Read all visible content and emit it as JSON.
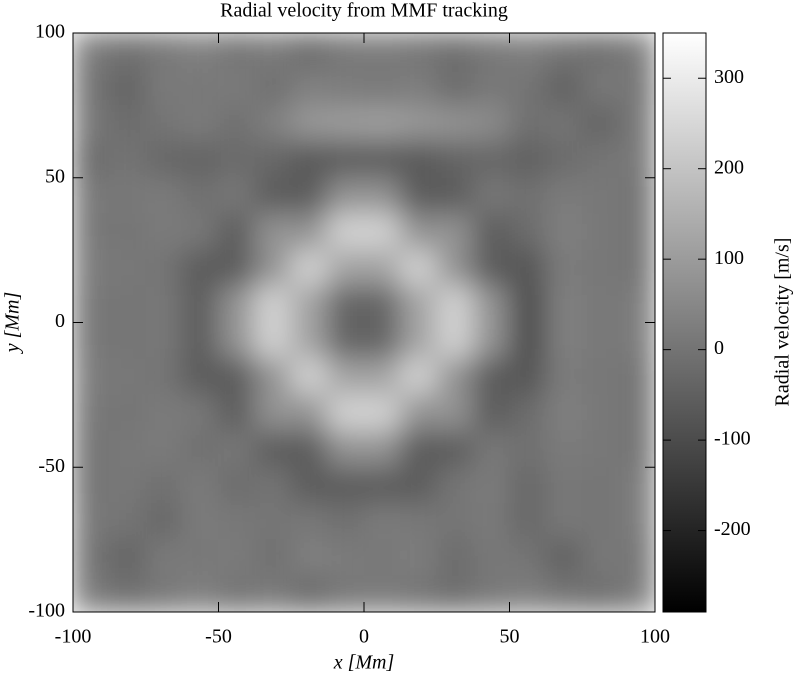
{
  "chart_data": {
    "type": "heatmap",
    "title": "Radial velocity from MMF tracking",
    "x_label": "x [Mm]",
    "y_label": "y [Mm]",
    "colorbar_label": "Radial velocity [m/s]",
    "colormap": "gray",
    "xlim": [
      -100,
      100
    ],
    "ylim": [
      -100,
      100
    ],
    "xticks": [
      -100,
      -50,
      0,
      50,
      100
    ],
    "yticks": [
      -100,
      -50,
      0,
      50,
      100
    ],
    "clim": [
      -290,
      350
    ],
    "cticks": [
      -200,
      -100,
      0,
      100,
      200,
      300
    ],
    "x": [
      -93.75,
      -81.25,
      -68.75,
      -56.25,
      -43.75,
      -31.25,
      -18.75,
      -6.25,
      6.25,
      18.75,
      31.25,
      43.75,
      56.25,
      68.75,
      81.25,
      93.75
    ],
    "y": [
      93.75,
      81.25,
      68.75,
      56.25,
      43.75,
      31.25,
      18.75,
      6.25,
      -6.25,
      -18.75,
      -31.25,
      -43.75,
      -56.25,
      -68.75,
      -81.25,
      -93.75
    ],
    "values": [
      [
        20,
        -10,
        10,
        30,
        0,
        15,
        -20,
        10,
        20,
        5,
        -15,
        10,
        25,
        0,
        -10,
        15
      ],
      [
        0,
        -40,
        15,
        10,
        20,
        -10,
        30,
        20,
        10,
        25,
        -20,
        10,
        0,
        -50,
        10,
        5
      ],
      [
        10,
        -20,
        0,
        20,
        -10,
        30,
        90,
        100,
        110,
        90,
        80,
        60,
        -10,
        0,
        -40,
        10
      ],
      [
        -20,
        0,
        -30,
        -40,
        -20,
        -30,
        -70,
        -60,
        -60,
        -70,
        -40,
        -30,
        -50,
        -20,
        0,
        10
      ],
      [
        10,
        10,
        20,
        -10,
        10,
        -60,
        -60,
        80,
        80,
        -60,
        -60,
        10,
        -10,
        20,
        10,
        0
      ],
      [
        10,
        0,
        20,
        10,
        -60,
        80,
        80,
        240,
        240,
        80,
        80,
        -60,
        -20,
        30,
        10,
        0
      ],
      [
        20,
        10,
        0,
        -60,
        -60,
        80,
        240,
        120,
        120,
        240,
        80,
        -60,
        -80,
        20,
        10,
        0
      ],
      [
        10,
        0,
        10,
        -60,
        80,
        240,
        120,
        -40,
        -40,
        120,
        240,
        80,
        -100,
        30,
        10,
        20
      ],
      [
        10,
        0,
        10,
        -60,
        80,
        240,
        120,
        -40,
        -40,
        120,
        240,
        80,
        -100,
        30,
        10,
        20
      ],
      [
        20,
        10,
        0,
        -60,
        -60,
        80,
        240,
        120,
        120,
        240,
        80,
        -60,
        -80,
        20,
        10,
        0
      ],
      [
        10,
        0,
        20,
        10,
        -60,
        80,
        80,
        240,
        240,
        80,
        80,
        -60,
        -20,
        30,
        10,
        0
      ],
      [
        0,
        10,
        20,
        -10,
        10,
        -60,
        -60,
        80,
        80,
        -60,
        -60,
        10,
        -10,
        20,
        10,
        0
      ],
      [
        0,
        10,
        -10,
        20,
        -20,
        0,
        -60,
        -60,
        -60,
        -60,
        0,
        20,
        -30,
        10,
        0,
        20
      ],
      [
        10,
        0,
        -30,
        20,
        10,
        0,
        10,
        -10,
        20,
        10,
        0,
        15,
        -30,
        10,
        0,
        20
      ],
      [
        0,
        -40,
        15,
        10,
        20,
        -10,
        30,
        20,
        10,
        25,
        -20,
        10,
        0,
        -50,
        10,
        5
      ],
      [
        20,
        -10,
        10,
        30,
        0,
        15,
        -20,
        10,
        20,
        5,
        -15,
        10,
        25,
        0,
        -10,
        15
      ]
    ]
  }
}
